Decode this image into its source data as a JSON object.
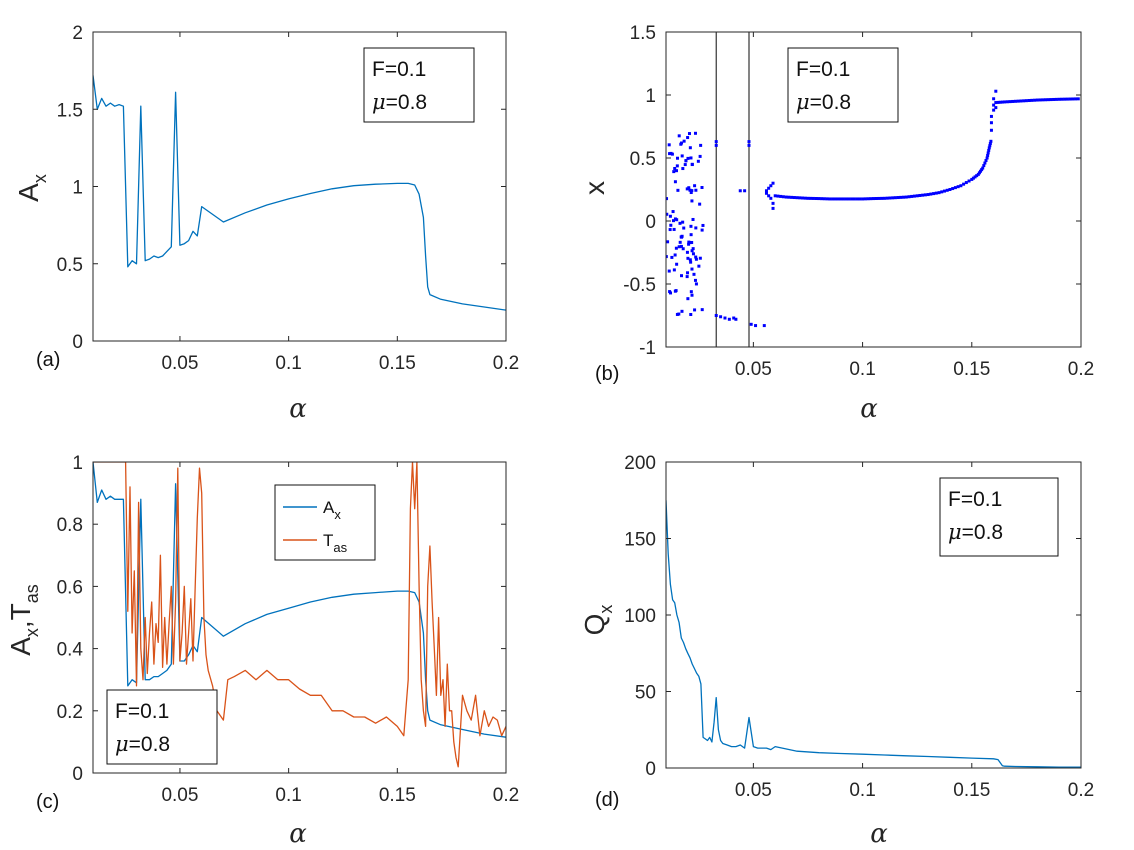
{
  "chart_data": [
    {
      "panel": "(a)",
      "type": "line",
      "xlabel": "α",
      "ylabel": "A",
      "ylabel_sub": "x",
      "xlim": [
        0.01,
        0.2
      ],
      "ylim": [
        0,
        2
      ],
      "xticks": [
        0.05,
        0.1,
        0.15,
        0.2
      ],
      "xtick_labels": [
        "0.05",
        "0.1",
        "0.15",
        "0.2"
      ],
      "yticks": [
        0,
        0.5,
        1,
        1.5,
        2
      ],
      "ytick_labels": [
        "0",
        "0.5",
        "1",
        "1.5",
        "2"
      ],
      "annotation": {
        "line1": "F=0.1",
        "line2_sym": "μ",
        "line2_rest": "=0.8"
      },
      "series": [
        {
          "name": "A_x",
          "color": "#0072BD",
          "x": [
            0.01,
            0.012,
            0.014,
            0.016,
            0.018,
            0.02,
            0.022,
            0.024,
            0.026,
            0.028,
            0.03,
            0.032,
            0.034,
            0.036,
            0.038,
            0.04,
            0.042,
            0.044,
            0.046,
            0.048,
            0.05,
            0.052,
            0.054,
            0.056,
            0.058,
            0.06,
            0.07,
            0.08,
            0.09,
            0.1,
            0.11,
            0.12,
            0.13,
            0.14,
            0.15,
            0.155,
            0.158,
            0.16,
            0.162,
            0.163,
            0.164,
            0.165,
            0.17,
            0.18,
            0.19,
            0.2
          ],
          "y": [
            1.72,
            1.5,
            1.57,
            1.52,
            1.54,
            1.52,
            1.53,
            1.52,
            0.48,
            0.52,
            0.5,
            1.52,
            0.52,
            0.53,
            0.55,
            0.54,
            0.55,
            0.58,
            0.61,
            1.61,
            0.62,
            0.63,
            0.65,
            0.71,
            0.68,
            0.87,
            0.77,
            0.83,
            0.88,
            0.92,
            0.955,
            0.985,
            1.005,
            1.015,
            1.02,
            1.02,
            1.01,
            0.95,
            0.8,
            0.55,
            0.35,
            0.3,
            0.27,
            0.24,
            0.22,
            0.2
          ]
        }
      ]
    },
    {
      "panel": "(b)",
      "type": "scatter",
      "xlabel": "α",
      "ylabel": "x",
      "xlim": [
        0.01,
        0.2
      ],
      "ylim": [
        -1,
        1.5
      ],
      "xticks": [
        0.05,
        0.1,
        0.15,
        0.2
      ],
      "xtick_labels": [
        "0.05",
        "0.1",
        "0.15",
        "0.2"
      ],
      "yticks": [
        -1,
        -0.5,
        0,
        0.5,
        1,
        1.5
      ],
      "ytick_labels": [
        "-1",
        "-0.5",
        "0",
        "0.5",
        "1",
        "1.5"
      ],
      "annotation": {
        "line1": "F=0.1",
        "line2_sym": "μ",
        "line2_rest": "=0.8"
      },
      "point_color": "#0000FF",
      "vlines": [
        0.033,
        0.048
      ],
      "vline_color": "#333333",
      "chaotic_region": {
        "x_range": [
          0.01,
          0.027
        ],
        "y_range": [
          -0.75,
          0.7
        ],
        "count": 110
      },
      "points": [
        [
          0.033,
          -0.75
        ],
        [
          0.035,
          -0.76
        ],
        [
          0.037,
          -0.77
        ],
        [
          0.039,
          -0.78
        ],
        [
          0.041,
          -0.77
        ],
        [
          0.042,
          -0.78
        ],
        [
          0.049,
          -0.82
        ],
        [
          0.051,
          -0.83
        ],
        [
          0.055,
          -0.83
        ],
        [
          0.044,
          0.24
        ],
        [
          0.046,
          0.24
        ],
        [
          0.033,
          0.63
        ],
        [
          0.033,
          0.6
        ],
        [
          0.048,
          0.63
        ],
        [
          0.048,
          0.6
        ],
        [
          0.056,
          0.22
        ],
        [
          0.056,
          0.24
        ],
        [
          0.057,
          0.26
        ],
        [
          0.057,
          0.2
        ],
        [
          0.058,
          0.18
        ],
        [
          0.058,
          0.28
        ],
        [
          0.059,
          0.14
        ],
        [
          0.059,
          0.3
        ],
        [
          0.059,
          0.1
        ]
      ],
      "branch": {
        "x": [
          0.06,
          0.065,
          0.07,
          0.075,
          0.08,
          0.085,
          0.09,
          0.095,
          0.1,
          0.105,
          0.11,
          0.115,
          0.12,
          0.125,
          0.13,
          0.135,
          0.14,
          0.145,
          0.15,
          0.153,
          0.155,
          0.157,
          0.158,
          0.159
        ],
        "y": [
          0.2,
          0.19,
          0.185,
          0.18,
          0.178,
          0.175,
          0.175,
          0.175,
          0.175,
          0.178,
          0.18,
          0.185,
          0.19,
          0.2,
          0.21,
          0.225,
          0.25,
          0.28,
          0.33,
          0.37,
          0.42,
          0.5,
          0.58,
          0.65
        ]
      },
      "jump_points": [
        [
          0.159,
          0.72
        ],
        [
          0.159,
          0.78
        ],
        [
          0.159,
          0.83
        ],
        [
          0.16,
          0.88
        ],
        [
          0.16,
          0.92
        ],
        [
          0.16,
          0.97
        ],
        [
          0.161,
          1.03
        ],
        [
          0.161,
          0.9
        ]
      ],
      "upper_branch": {
        "x": [
          0.161,
          0.165,
          0.17,
          0.175,
          0.18,
          0.185,
          0.19,
          0.195,
          0.2
        ],
        "y": [
          0.94,
          0.945,
          0.95,
          0.955,
          0.96,
          0.963,
          0.966,
          0.968,
          0.97
        ]
      }
    },
    {
      "panel": "(c)",
      "type": "line",
      "xlabel": "α",
      "ylabel": "A",
      "ylabel_sub": "x",
      "ylabel_mid": ",T",
      "ylabel_sub2": "as",
      "xlim": [
        0.01,
        0.2
      ],
      "ylim": [
        0,
        1
      ],
      "xticks": [
        0.05,
        0.1,
        0.15,
        0.2
      ],
      "xtick_labels": [
        "0.05",
        "0.1",
        "0.15",
        "0.2"
      ],
      "yticks": [
        0,
        0.2,
        0.4,
        0.6,
        0.8,
        1
      ],
      "ytick_labels": [
        "0",
        "0.2",
        "0.4",
        "0.6",
        "0.8",
        "1"
      ],
      "annotation": {
        "line1": "F=0.1",
        "line2_sym": "μ",
        "line2_rest": "=0.8"
      },
      "legend": {
        "position": "top-right",
        "entries": [
          {
            "label": "A",
            "sub": "x"
          },
          {
            "label": "T",
            "sub": "as"
          }
        ]
      },
      "series": [
        {
          "name": "A_x",
          "color": "#0072BD",
          "x": [
            0.01,
            0.012,
            0.014,
            0.016,
            0.018,
            0.02,
            0.022,
            0.024,
            0.026,
            0.028,
            0.03,
            0.032,
            0.034,
            0.036,
            0.038,
            0.04,
            0.042,
            0.044,
            0.046,
            0.048,
            0.05,
            0.052,
            0.054,
            0.056,
            0.058,
            0.06,
            0.07,
            0.08,
            0.09,
            0.1,
            0.11,
            0.12,
            0.13,
            0.14,
            0.15,
            0.155,
            0.158,
            0.16,
            0.162,
            0.163,
            0.164,
            0.165,
            0.17,
            0.18,
            0.19,
            0.2
          ],
          "y": [
            1.0,
            0.87,
            0.91,
            0.88,
            0.89,
            0.88,
            0.88,
            0.88,
            0.28,
            0.3,
            0.29,
            0.88,
            0.3,
            0.3,
            0.31,
            0.31,
            0.32,
            0.33,
            0.35,
            0.93,
            0.36,
            0.36,
            0.38,
            0.41,
            0.39,
            0.5,
            0.44,
            0.48,
            0.51,
            0.53,
            0.55,
            0.565,
            0.575,
            0.58,
            0.585,
            0.585,
            0.58,
            0.55,
            0.45,
            0.3,
            0.2,
            0.17,
            0.155,
            0.14,
            0.125,
            0.115
          ]
        },
        {
          "name": "T_as",
          "color": "#D95319",
          "x": [
            0.01,
            0.015,
            0.02,
            0.025,
            0.026,
            0.027,
            0.028,
            0.029,
            0.03,
            0.031,
            0.032,
            0.033,
            0.034,
            0.035,
            0.036,
            0.037,
            0.038,
            0.039,
            0.04,
            0.041,
            0.042,
            0.043,
            0.044,
            0.045,
            0.046,
            0.047,
            0.048,
            0.049,
            0.05,
            0.051,
            0.052,
            0.053,
            0.054,
            0.055,
            0.056,
            0.057,
            0.058,
            0.059,
            0.06,
            0.061,
            0.062,
            0.063,
            0.065,
            0.067,
            0.07,
            0.072,
            0.075,
            0.08,
            0.085,
            0.09,
            0.095,
            0.1,
            0.105,
            0.11,
            0.115,
            0.12,
            0.125,
            0.13,
            0.135,
            0.14,
            0.145,
            0.15,
            0.153,
            0.155,
            0.156,
            0.157,
            0.158,
            0.159,
            0.16,
            0.161,
            0.162,
            0.163,
            0.164,
            0.165,
            0.166,
            0.167,
            0.168,
            0.169,
            0.17,
            0.171,
            0.172,
            0.173,
            0.174,
            0.175,
            0.176,
            0.177,
            0.178,
            0.18,
            0.182,
            0.184,
            0.186,
            0.188,
            0.19,
            0.192,
            0.194,
            0.196,
            0.198,
            0.2
          ],
          "y": [
            1.0,
            1.0,
            1.0,
            1.0,
            0.52,
            0.92,
            0.45,
            0.65,
            0.28,
            0.87,
            0.4,
            0.3,
            0.5,
            0.32,
            0.45,
            0.55,
            0.35,
            0.48,
            0.42,
            0.7,
            0.34,
            0.5,
            0.35,
            0.48,
            0.6,
            0.35,
            0.55,
            0.98,
            0.36,
            0.45,
            0.6,
            0.35,
            0.45,
            0.56,
            0.36,
            0.6,
            0.82,
            0.98,
            0.9,
            0.5,
            0.38,
            0.33,
            0.28,
            0.2,
            0.17,
            0.3,
            0.31,
            0.33,
            0.3,
            0.33,
            0.3,
            0.3,
            0.27,
            0.25,
            0.25,
            0.2,
            0.2,
            0.18,
            0.18,
            0.16,
            0.18,
            0.15,
            0.12,
            0.3,
            0.85,
            1.0,
            0.85,
            1.0,
            0.6,
            0.3,
            0.2,
            0.15,
            0.6,
            0.73,
            0.55,
            0.4,
            0.25,
            0.5,
            0.25,
            0.3,
            0.15,
            0.35,
            0.2,
            0.2,
            0.1,
            0.05,
            0.02,
            0.25,
            0.2,
            0.17,
            0.25,
            0.12,
            0.2,
            0.15,
            0.18,
            0.17,
            0.12,
            0.15
          ]
        }
      ]
    },
    {
      "panel": "(d)",
      "type": "line",
      "xlabel": "α",
      "ylabel": "Q",
      "ylabel_sub": "x",
      "xlim": [
        0.01,
        0.2
      ],
      "ylim": [
        0,
        200
      ],
      "xticks": [
        0.05,
        0.1,
        0.15,
        0.2
      ],
      "xtick_labels": [
        "0.05",
        "0.1",
        "0.15",
        "0.2"
      ],
      "yticks": [
        0,
        50,
        100,
        150,
        200
      ],
      "ytick_labels": [
        "0",
        "50",
        "100",
        "150",
        "200"
      ],
      "annotation": {
        "line1": "F=0.1",
        "line2_sym": "μ",
        "line2_rest": "=0.8"
      },
      "series": [
        {
          "name": "Q_x",
          "color": "#0072BD",
          "x": [
            0.01,
            0.011,
            0.012,
            0.013,
            0.014,
            0.015,
            0.016,
            0.017,
            0.018,
            0.019,
            0.02,
            0.021,
            0.022,
            0.023,
            0.024,
            0.025,
            0.026,
            0.027,
            0.028,
            0.029,
            0.03,
            0.031,
            0.032,
            0.033,
            0.034,
            0.035,
            0.036,
            0.038,
            0.04,
            0.042,
            0.044,
            0.046,
            0.048,
            0.05,
            0.052,
            0.054,
            0.056,
            0.058,
            0.06,
            0.07,
            0.08,
            0.09,
            0.1,
            0.11,
            0.12,
            0.13,
            0.14,
            0.15,
            0.16,
            0.162,
            0.164,
            0.165,
            0.17,
            0.18,
            0.19,
            0.2
          ],
          "y": [
            175,
            140,
            120,
            110,
            108,
            100,
            95,
            85,
            82,
            78,
            75,
            72,
            68,
            65,
            62,
            60,
            55,
            20,
            19,
            18,
            20,
            17,
            30,
            46,
            25,
            18,
            16,
            15,
            14,
            14,
            15,
            13,
            33,
            14,
            13,
            13,
            13,
            12,
            14,
            11,
            10,
            9.5,
            9,
            8.5,
            8,
            7.5,
            7,
            6.5,
            6,
            5.5,
            1.5,
            1.2,
            1,
            0.8,
            0.6,
            0.5
          ]
        }
      ]
    }
  ]
}
